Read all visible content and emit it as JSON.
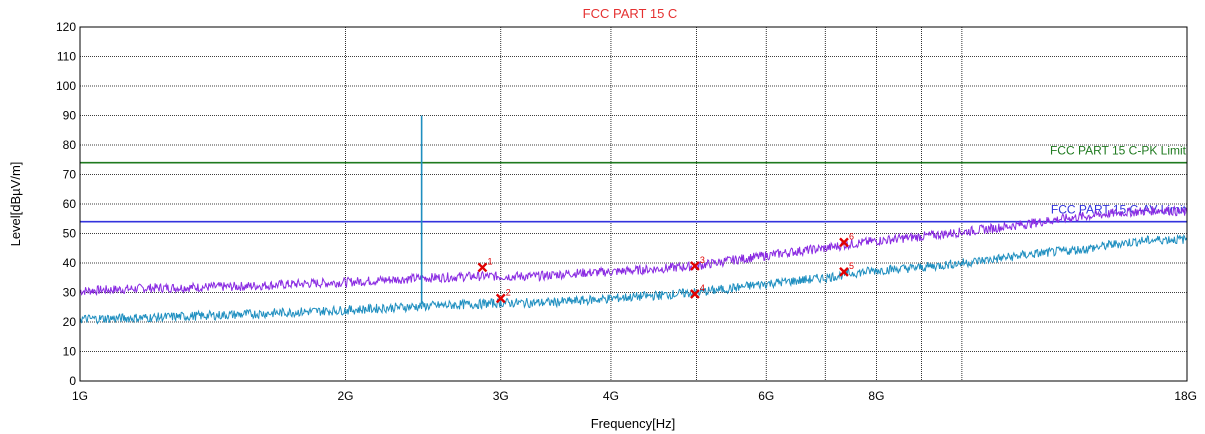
{
  "chart_data": {
    "type": "line",
    "title": "FCC PART 15 C",
    "xlabel": "Frequency[Hz]",
    "ylabel": "Level[dBµV/m]",
    "x_scale": "log",
    "x_unit": "GHz",
    "xlim": [
      1,
      18
    ],
    "ylim": [
      0,
      120
    ],
    "x_ticks": [
      {
        "value": 1,
        "label": "1G"
      },
      {
        "value": 2,
        "label": "2G"
      },
      {
        "value": 3,
        "label": "3G"
      },
      {
        "value": 4,
        "label": "4G"
      },
      {
        "value": 6,
        "label": "6G"
      },
      {
        "value": 8,
        "label": "8G"
      },
      {
        "value": 18,
        "label": "18G"
      }
    ],
    "x_grid_extra": [
      5,
      7,
      9,
      10
    ],
    "y_ticks": [
      0,
      10,
      20,
      30,
      40,
      50,
      60,
      70,
      80,
      90,
      100,
      110,
      120
    ],
    "grid": true,
    "limits": [
      {
        "name": "FCC PART 15 C-PK Limit",
        "value": 74,
        "color": "#1f7a1f"
      },
      {
        "name": "FCC PART 15 C-AV Limit",
        "value": 54,
        "color": "#3333dd"
      }
    ],
    "series": [
      {
        "key": "peak",
        "color": "#8a2be2",
        "x": [
          1,
          1.2,
          1.5,
          1.8,
          2,
          2.3,
          2.5,
          2.8,
          3,
          3.3,
          3.6,
          4,
          4.5,
          5,
          5.5,
          6,
          6.5,
          7,
          7.5,
          8,
          9,
          10,
          11,
          12,
          13,
          14,
          15,
          16,
          17,
          18
        ],
        "values": [
          30.5,
          31.5,
          32,
          33,
          33.5,
          34.5,
          35,
          35.5,
          35.5,
          35.5,
          36.5,
          37,
          38,
          39,
          41,
          42.5,
          44,
          45,
          46.5,
          47.5,
          49,
          50.5,
          52,
          53.5,
          55,
          56,
          57,
          57.5,
          58,
          57
        ]
      },
      {
        "key": "average",
        "color": "#1f8fc0",
        "x": [
          1,
          1.2,
          1.5,
          1.8,
          2,
          2.3,
          2.5,
          2.8,
          3,
          3.3,
          3.6,
          4,
          4.5,
          5,
          5.5,
          6,
          6.5,
          7,
          7.5,
          8,
          9,
          10,
          11,
          12,
          13,
          14,
          15,
          16,
          17,
          18
        ],
        "values": [
          21,
          21.5,
          22.5,
          23.5,
          24,
          25,
          25.5,
          26,
          26.5,
          26.5,
          27,
          28,
          29,
          30,
          31.5,
          33,
          34,
          35,
          36.5,
          37.5,
          38.5,
          40,
          41.5,
          43,
          44,
          45,
          46.5,
          47.5,
          48,
          48
        ]
      }
    ],
    "spike": {
      "x": 2.44,
      "from": 26,
      "to": 90,
      "color": "#1f8fc0"
    },
    "markers": [
      {
        "label": "1",
        "x": 2.86,
        "y": 38.5
      },
      {
        "label": "2",
        "x": 3.0,
        "y": 28
      },
      {
        "label": "3",
        "x": 4.98,
        "y": 39
      },
      {
        "label": "4",
        "x": 4.98,
        "y": 29.5
      },
      {
        "label": "5",
        "x": 7.35,
        "y": 37
      },
      {
        "label": "6",
        "x": 7.35,
        "y": 47
      }
    ]
  }
}
